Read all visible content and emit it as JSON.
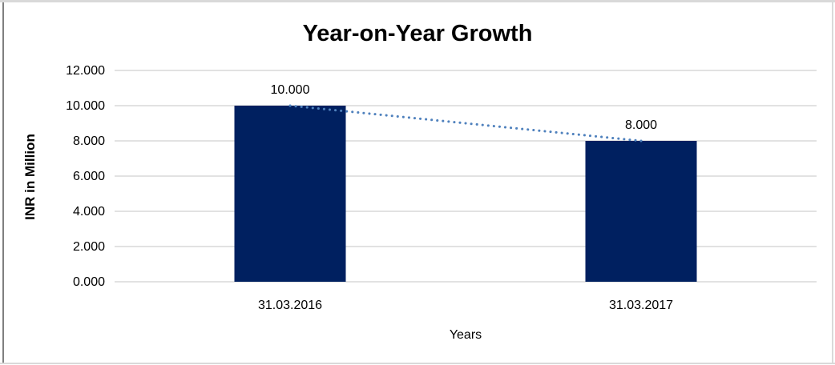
{
  "chart_data": {
    "type": "bar",
    "title": "Year-on-Year Growth",
    "categories": [
      "31.03.2016",
      "31.03.2017"
    ],
    "values": [
      10,
      8
    ],
    "data_labels": [
      "10.000",
      "8.000"
    ],
    "xlabel": "Years",
    "ylabel": "INR in Million",
    "ylim": [
      0,
      12
    ],
    "ytick_interval": 2,
    "ytick_labels": [
      "0.000",
      "2.000",
      "4.000",
      "6.000",
      "8.000",
      "10.000",
      "12.000"
    ],
    "grid": true,
    "legend": false,
    "trendline": {
      "style": "dotted",
      "connects": [
        "10.000",
        "8.000"
      ]
    },
    "colors": {
      "bar": "#002060",
      "trendline": "#4F81BD",
      "gridline": "#d9d9d9",
      "text": "#000000",
      "frame_light": "#d9d9d9",
      "frame_dark": "#7f7f7f"
    }
  }
}
